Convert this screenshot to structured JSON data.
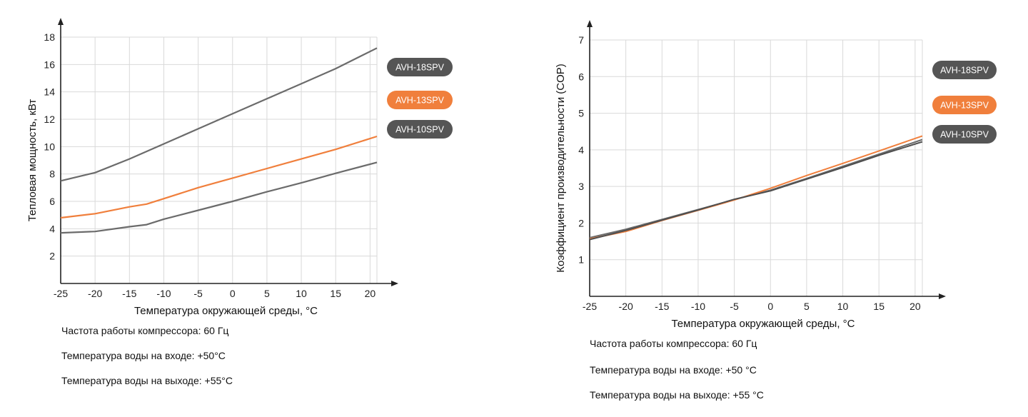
{
  "chart_data": [
    {
      "type": "line",
      "ylabel": "Тепловая мощность, кВт",
      "xlabel": "Температура окружающей среды, °C",
      "xlim": [
        -25,
        21
      ],
      "ylim": [
        0,
        18
      ],
      "x_ticks": [
        -25,
        -20,
        -15,
        -10,
        -5,
        0,
        5,
        10,
        15,
        20
      ],
      "y_ticks": [
        2,
        4,
        6,
        8,
        10,
        12,
        14,
        16,
        18
      ],
      "grid": true,
      "legend_position": "right",
      "series": [
        {
          "name": "AVH-18SPV",
          "color": "#6b6b6b",
          "points": [
            [
              -25,
              7.5
            ],
            [
              -20,
              8.1
            ],
            [
              -15,
              9.1
            ],
            [
              -10,
              10.2
            ],
            [
              -5,
              11.3
            ],
            [
              0,
              12.4
            ],
            [
              5,
              13.5
            ],
            [
              10,
              14.6
            ],
            [
              15,
              15.7
            ],
            [
              21,
              17.2
            ]
          ]
        },
        {
          "name": "AVH-13SPV",
          "color": "#f07f3c",
          "points": [
            [
              -25,
              4.8
            ],
            [
              -20,
              5.1
            ],
            [
              -15,
              5.6
            ],
            [
              -12.5,
              5.8
            ],
            [
              -10,
              6.2
            ],
            [
              -5,
              7.0
            ],
            [
              0,
              7.7
            ],
            [
              5,
              8.4
            ],
            [
              10,
              9.1
            ],
            [
              15,
              9.8
            ],
            [
              21,
              10.75
            ]
          ]
        },
        {
          "name": "AVH-10SPV",
          "color": "#6b6b6b",
          "points": [
            [
              -25,
              3.7
            ],
            [
              -20,
              3.8
            ],
            [
              -15,
              4.15
            ],
            [
              -12.5,
              4.3
            ],
            [
              -10,
              4.7
            ],
            [
              -5,
              5.35
            ],
            [
              0,
              6.0
            ],
            [
              5,
              6.7
            ],
            [
              10,
              7.35
            ],
            [
              15,
              8.05
            ],
            [
              21,
              8.85
            ]
          ]
        }
      ]
    },
    {
      "type": "line",
      "ylabel": "Коэффициент производительности (COP)",
      "xlabel": "Температура окружающей среды, °C",
      "xlim": [
        -25,
        21
      ],
      "ylim": [
        0,
        7
      ],
      "x_ticks": [
        -25,
        -20,
        -15,
        -10,
        -5,
        0,
        5,
        10,
        15,
        20
      ],
      "y_ticks": [
        1,
        2,
        3,
        4,
        5,
        6,
        7
      ],
      "grid": true,
      "legend_position": "right",
      "series": [
        {
          "name": "AVH-18SPV",
          "color": "#6b6b6b",
          "points": [
            [
              -25,
              1.6
            ],
            [
              -20,
              1.83
            ],
            [
              -15,
              2.1
            ],
            [
              -10,
              2.37
            ],
            [
              -5,
              2.64
            ],
            [
              0,
              2.9
            ],
            [
              5,
              3.22
            ],
            [
              10,
              3.55
            ],
            [
              15,
              3.88
            ],
            [
              21,
              4.28
            ]
          ]
        },
        {
          "name": "AVH-13SPV",
          "color": "#f07f3c",
          "points": [
            [
              -25,
              1.57
            ],
            [
              -20,
              1.77
            ],
            [
              -15,
              2.07
            ],
            [
              -10,
              2.35
            ],
            [
              -5,
              2.63
            ],
            [
              0,
              2.95
            ],
            [
              5,
              3.3
            ],
            [
              10,
              3.63
            ],
            [
              15,
              3.97
            ],
            [
              21,
              4.38
            ]
          ]
        },
        {
          "name": "AVH-10SPV",
          "color": "#4f4f4f",
          "points": [
            [
              -25,
              1.55
            ],
            [
              -20,
              1.8
            ],
            [
              -15,
              2.08
            ],
            [
              -10,
              2.36
            ],
            [
              -5,
              2.65
            ],
            [
              0,
              2.88
            ],
            [
              5,
              3.2
            ],
            [
              10,
              3.52
            ],
            [
              15,
              3.85
            ],
            [
              21,
              4.22
            ]
          ]
        }
      ]
    }
  ],
  "legend_colors": {
    "gray": "#555555",
    "orange": "#f07f3c"
  },
  "notes": [
    {
      "frequency": "Частота работы компрессора: 60 Гц",
      "water_in": "Температура воды на входе: +50°C",
      "water_out": "Температура воды на выходе: +55°C"
    },
    {
      "frequency": "Частота работы компрессора: 60 Гц",
      "water_in": "Температура воды на входе: +50 °C",
      "water_out": "Температура воды на выходе: +55 °C"
    }
  ]
}
